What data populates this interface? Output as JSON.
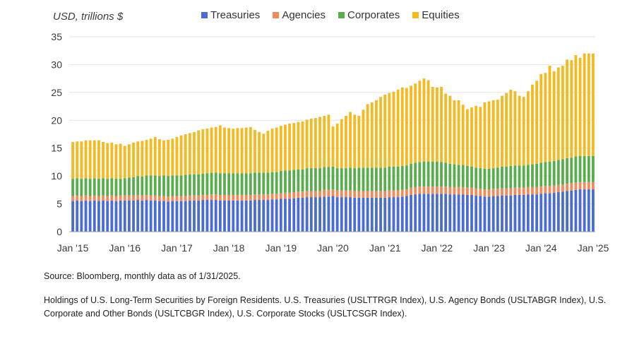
{
  "chart_data": {
    "type": "bar",
    "stacked": true,
    "ylabel": "USD, trillions $",
    "ylim": [
      0,
      35
    ],
    "yticks": [
      0,
      5,
      10,
      15,
      20,
      25,
      30,
      35
    ],
    "xtick_labels": [
      "Jan '15",
      "Jan '16",
      "Jan '17",
      "Jan '18",
      "Jan '19",
      "Jan '20",
      "Jan '21",
      "Jan '22",
      "Jan '23",
      "Jan '24",
      "Jan '25"
    ],
    "xtick_indices": [
      0,
      12,
      24,
      36,
      48,
      60,
      72,
      84,
      96,
      108,
      120
    ],
    "grid": true,
    "legend_position": "top",
    "colors": {
      "Treasuries": "#4a6cd4",
      "Agencies": "#f08a5a",
      "Corporates": "#5aad4e",
      "Equities": "#f5b921"
    },
    "series": [
      {
        "name": "Treasuries",
        "values": [
          5.5,
          5.6,
          5.5,
          5.6,
          5.5,
          5.6,
          5.5,
          5.6,
          5.5,
          5.6,
          5.5,
          5.6,
          5.6,
          5.6,
          5.6,
          5.7,
          5.6,
          5.7,
          5.6,
          5.6,
          5.5,
          5.5,
          5.4,
          5.5,
          5.5,
          5.5,
          5.5,
          5.6,
          5.6,
          5.6,
          5.7,
          5.7,
          5.7,
          5.7,
          5.6,
          5.6,
          5.6,
          5.6,
          5.6,
          5.6,
          5.6,
          5.6,
          5.7,
          5.7,
          5.7,
          5.7,
          5.8,
          5.8,
          5.9,
          5.9,
          5.9,
          6.0,
          6.1,
          6.1,
          6.2,
          6.2,
          6.2,
          6.2,
          6.3,
          6.3,
          6.4,
          6.2,
          6.2,
          6.2,
          6.2,
          6.1,
          6.1,
          6.1,
          6.1,
          6.1,
          6.1,
          6.1,
          6.1,
          6.2,
          6.2,
          6.2,
          6.3,
          6.4,
          6.6,
          6.7,
          6.8,
          6.8,
          6.8,
          6.8,
          6.8,
          6.8,
          6.8,
          6.7,
          6.7,
          6.7,
          6.7,
          6.6,
          6.6,
          6.5,
          6.4,
          6.3,
          6.3,
          6.4,
          6.4,
          6.5,
          6.5,
          6.5,
          6.6,
          6.6,
          6.6,
          6.7,
          6.7,
          6.7,
          6.8,
          6.9,
          6.9,
          7.0,
          7.1,
          7.2,
          7.3,
          7.4,
          7.5,
          7.6,
          7.6,
          7.6,
          7.6
        ]
      },
      {
        "name": "Agencies",
        "values": [
          0.9,
          0.9,
          0.9,
          0.9,
          0.9,
          0.9,
          0.9,
          0.9,
          0.9,
          0.9,
          0.9,
          0.9,
          0.9,
          0.9,
          0.9,
          0.9,
          0.9,
          0.9,
          0.9,
          0.9,
          0.9,
          0.9,
          0.9,
          0.9,
          0.9,
          0.9,
          0.9,
          0.9,
          0.9,
          0.9,
          0.9,
          0.9,
          1.0,
          1.0,
          1.0,
          1.0,
          1.0,
          1.0,
          1.0,
          1.0,
          1.0,
          1.0,
          1.0,
          1.0,
          1.0,
          1.0,
          1.0,
          1.0,
          1.0,
          1.1,
          1.1,
          1.1,
          1.1,
          1.1,
          1.1,
          1.1,
          1.1,
          1.1,
          1.2,
          1.2,
          1.2,
          1.2,
          1.2,
          1.2,
          1.2,
          1.2,
          1.2,
          1.2,
          1.2,
          1.2,
          1.2,
          1.2,
          1.2,
          1.2,
          1.2,
          1.2,
          1.2,
          1.2,
          1.3,
          1.3,
          1.3,
          1.3,
          1.3,
          1.3,
          1.3,
          1.3,
          1.3,
          1.3,
          1.3,
          1.3,
          1.3,
          1.3,
          1.3,
          1.3,
          1.3,
          1.3,
          1.3,
          1.3,
          1.3,
          1.3,
          1.3,
          1.3,
          1.3,
          1.3,
          1.3,
          1.3,
          1.3,
          1.3,
          1.3,
          1.3,
          1.3,
          1.3,
          1.3,
          1.3,
          1.3,
          1.3,
          1.3,
          1.3,
          1.3,
          1.3,
          1.3
        ]
      },
      {
        "name": "Corporates",
        "values": [
          3.1,
          3.1,
          3.1,
          3.1,
          3.1,
          3.1,
          3.1,
          3.1,
          3.1,
          3.1,
          3.1,
          3.0,
          3.1,
          3.2,
          3.3,
          3.4,
          3.4,
          3.5,
          3.6,
          3.6,
          3.6,
          3.7,
          3.7,
          3.7,
          3.7,
          3.7,
          3.8,
          3.8,
          3.8,
          3.8,
          3.8,
          3.9,
          3.9,
          3.9,
          3.9,
          3.9,
          3.9,
          3.9,
          3.9,
          3.9,
          3.9,
          3.9,
          3.9,
          3.9,
          3.9,
          3.9,
          3.9,
          3.9,
          4.0,
          4.0,
          4.0,
          4.0,
          4.0,
          4.0,
          4.1,
          4.1,
          4.1,
          4.1,
          4.1,
          4.1,
          4.1,
          4.0,
          4.0,
          4.0,
          4.1,
          4.1,
          4.2,
          4.2,
          4.2,
          4.2,
          4.2,
          4.2,
          4.2,
          4.3,
          4.3,
          4.3,
          4.3,
          4.3,
          4.3,
          4.4,
          4.4,
          4.5,
          4.5,
          4.5,
          4.5,
          4.4,
          4.3,
          4.2,
          4.1,
          4.0,
          4.0,
          3.9,
          3.8,
          3.7,
          3.7,
          3.7,
          3.7,
          3.7,
          3.8,
          3.9,
          3.9,
          4.0,
          4.0,
          4.0,
          4.0,
          4.0,
          4.1,
          4.2,
          4.3,
          4.3,
          4.4,
          4.4,
          4.5,
          4.5,
          4.6,
          4.6,
          4.7,
          4.7,
          4.7,
          4.7,
          4.7
        ]
      },
      {
        "name": "Equities",
        "values": [
          6.6,
          6.6,
          6.7,
          6.8,
          6.9,
          6.8,
          6.9,
          6.5,
          6.4,
          6.4,
          6.2,
          6.3,
          5.8,
          6.0,
          6.2,
          6.2,
          6.4,
          6.4,
          6.6,
          6.9,
          6.6,
          6.3,
          6.5,
          6.6,
          6.9,
          7.2,
          7.3,
          7.4,
          7.6,
          7.9,
          8.0,
          8.0,
          8.1,
          8.2,
          8.6,
          8.2,
          8.1,
          8.0,
          8.1,
          8.1,
          8.2,
          8.3,
          7.7,
          7.3,
          7.0,
          7.5,
          7.8,
          8.0,
          8.1,
          8.2,
          8.4,
          8.4,
          8.5,
          8.6,
          8.7,
          8.9,
          9.0,
          9.2,
          9.2,
          9.4,
          7.2,
          8.0,
          8.8,
          9.4,
          10.0,
          9.6,
          9.3,
          10.4,
          11.4,
          11.7,
          12.1,
          12.7,
          13.1,
          13.2,
          13.4,
          13.8,
          14.1,
          13.9,
          14.0,
          14.2,
          14.6,
          14.9,
          14.6,
          13.4,
          13.3,
          13.5,
          12.4,
          12.2,
          11.5,
          11.6,
          10.8,
          10.2,
          10.6,
          11.1,
          11.0,
          11.9,
          12.1,
          12.2,
          12.2,
          12.7,
          13.2,
          13.7,
          13.3,
          12.5,
          12.3,
          13.2,
          14.3,
          14.9,
          15.9,
          16.0,
          17.2,
          16.1,
          16.6,
          16.8,
          17.7,
          17.5,
          18.2,
          17.6,
          18.4,
          18.4,
          18.4
        ]
      }
    ]
  },
  "legend": {
    "items": [
      "Treasuries",
      "Agencies",
      "Corporates",
      "Equities"
    ]
  },
  "footer": {
    "source": "Source: Bloomberg, monthly data as of 1/31/2025.",
    "note": "Holdings of U.S. Long-Term Securities by Foreign Residents. U.S. Treasuries (USLTTRGR Index), U.S. Agency Bonds (USLTABGR Index), U.S. Corporate and Other Bonds (USLTCBGR Index), U.S. Corporate Stocks (USLTCSGR Index)."
  }
}
